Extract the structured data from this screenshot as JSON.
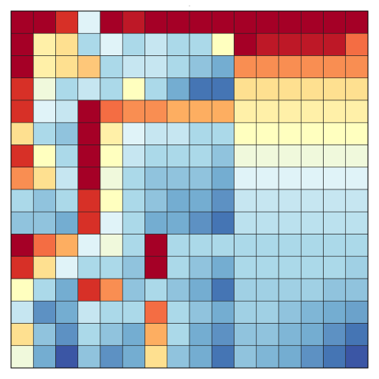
{
  "chart_data": {
    "type": "heatmap",
    "title": "-",
    "colormap": [
      "#313695",
      "#4575b4",
      "#74add1",
      "#abd9e9",
      "#e0f3f8",
      "#ffffbf",
      "#fee090",
      "#fdae61",
      "#f46d43",
      "#d73027",
      "#a50026"
    ],
    "clim": [
      0,
      1
    ],
    "values": [
      [
        1,
        1,
        0.9,
        0.4,
        1,
        0.95,
        1,
        1,
        1,
        1,
        1,
        1,
        1,
        1,
        1,
        1
      ],
      [
        1,
        0.55,
        0.6,
        0.3,
        0.4,
        0.3,
        0.35,
        0.3,
        0.3,
        0.5,
        1,
        0.95,
        0.95,
        0.95,
        0.95,
        0.8
      ],
      [
        1,
        0.55,
        0.6,
        0.65,
        0.3,
        0.35,
        0.35,
        0.3,
        0.25,
        0.2,
        0.75,
        0.75,
        0.75,
        0.75,
        0.75,
        0.75
      ],
      [
        0.9,
        0.45,
        0.3,
        0.35,
        0.3,
        0.5,
        0.3,
        0.2,
        0.1,
        0.1,
        0.6,
        0.6,
        0.6,
        0.6,
        0.6,
        0.6
      ],
      [
        0.9,
        0.4,
        0.35,
        1,
        0.8,
        0.75,
        0.75,
        0.7,
        0.7,
        0.7,
        0.55,
        0.55,
        0.55,
        0.55,
        0.55,
        0.55
      ],
      [
        0.6,
        0.3,
        0.25,
        1,
        0.55,
        0.4,
        0.35,
        0.35,
        0.3,
        0.3,
        0.5,
        0.5,
        0.5,
        0.5,
        0.5,
        0.5
      ],
      [
        0.9,
        0.5,
        0.3,
        1,
        0.5,
        0.35,
        0.3,
        0.3,
        0.3,
        0.25,
        0.45,
        0.45,
        0.45,
        0.45,
        0.45,
        0.45
      ],
      [
        0.75,
        0.6,
        0.35,
        1,
        0.45,
        0.3,
        0.25,
        0.25,
        0.25,
        0.2,
        0.4,
        0.4,
        0.4,
        0.4,
        0.4,
        0.4
      ],
      [
        0.3,
        0.25,
        0.3,
        0.9,
        0.5,
        0.3,
        0.25,
        0.2,
        0.2,
        0.15,
        0.35,
        0.35,
        0.35,
        0.35,
        0.35,
        0.35
      ],
      [
        0.25,
        0.25,
        0.2,
        0.9,
        0.4,
        0.3,
        0.2,
        0.2,
        0.15,
        0.1,
        0.33,
        0.33,
        0.33,
        0.33,
        0.33,
        0.33
      ],
      [
        1,
        0.8,
        0.7,
        0.4,
        0.45,
        0.3,
        1,
        0.3,
        0.3,
        0.3,
        0.3,
        0.3,
        0.3,
        0.3,
        0.3,
        0.3
      ],
      [
        0.9,
        0.6,
        0.4,
        0.3,
        0.3,
        0.25,
        1,
        0.3,
        0.25,
        0.2,
        0.3,
        0.3,
        0.3,
        0.3,
        0.3,
        0.28
      ],
      [
        0.5,
        0.3,
        0.2,
        0.9,
        0.75,
        0.25,
        0.3,
        0.25,
        0.2,
        0.1,
        0.28,
        0.28,
        0.28,
        0.28,
        0.25,
        0.25
      ],
      [
        0.35,
        0.15,
        0.2,
        0.35,
        0.3,
        0.3,
        0.8,
        0.3,
        0.25,
        0.2,
        0.28,
        0.28,
        0.25,
        0.22,
        0.2,
        0.18
      ],
      [
        0.6,
        0.25,
        0.15,
        0.3,
        0.25,
        0.2,
        0.7,
        0.3,
        0.2,
        0.15,
        0.25,
        0.25,
        0.22,
        0.2,
        0.15,
        0.1
      ],
      [
        0.45,
        0.2,
        0.05,
        0.25,
        0.15,
        0.2,
        0.6,
        0.25,
        0.2,
        0.1,
        0.25,
        0.22,
        0.2,
        0.15,
        0.1,
        0.05
      ]
    ]
  }
}
